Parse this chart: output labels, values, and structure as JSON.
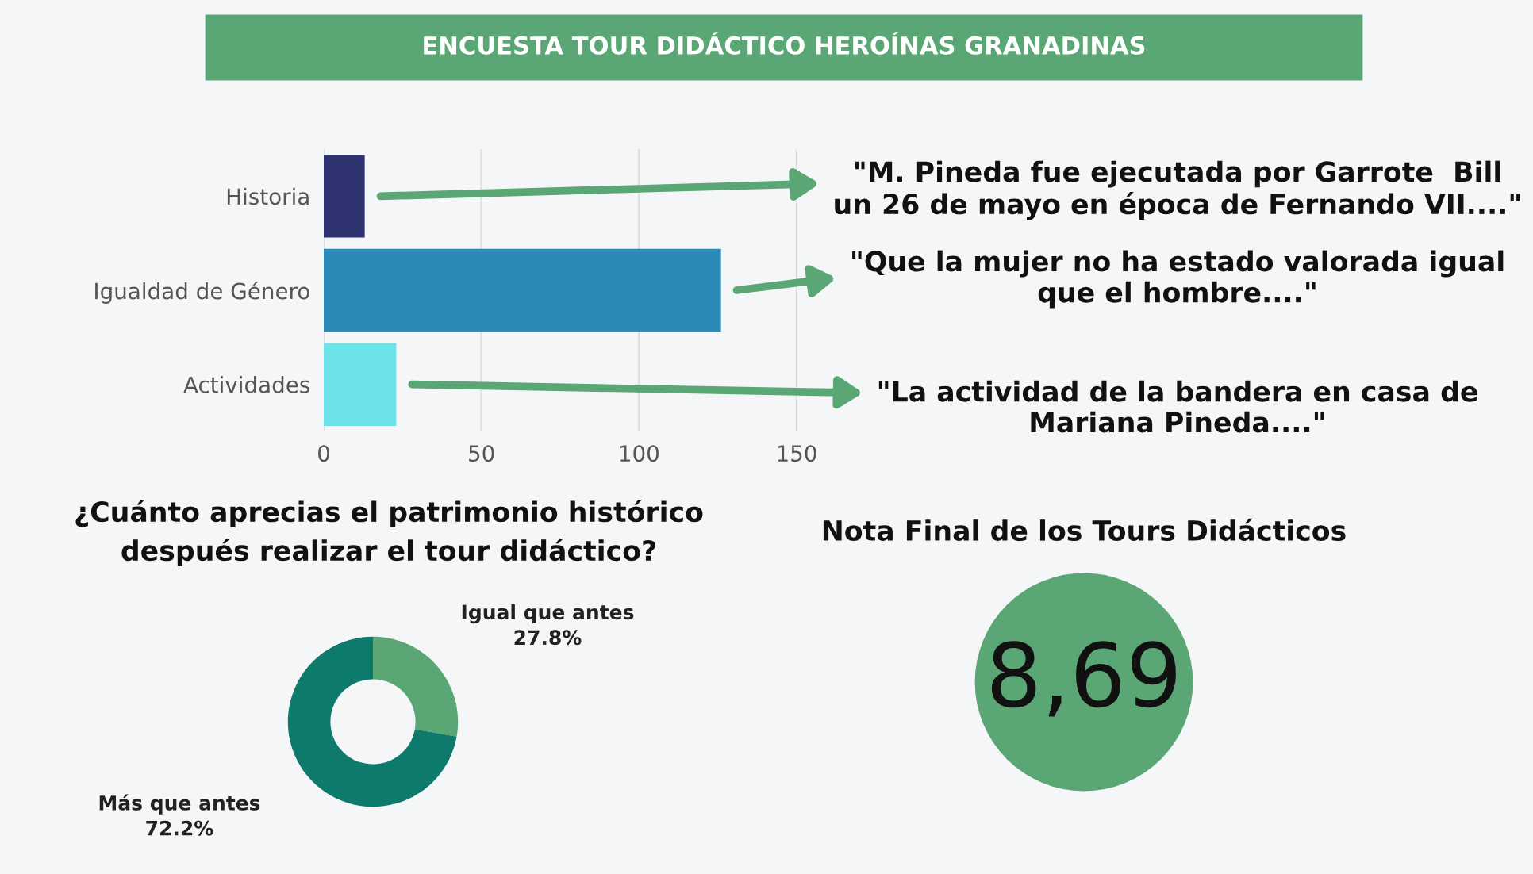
{
  "chart_data": [
    {
      "type": "bar",
      "orientation": "horizontal",
      "title": "ENCUESTA TOUR DIDÁCTICO HEROÍNAS GRANADINAS",
      "categories": [
        "Historia",
        "Igualdad de Género",
        "Actividades"
      ],
      "values": [
        13,
        126,
        23
      ],
      "colors": [
        "#2e3270",
        "#2b8ab8",
        "#6ce3e8"
      ],
      "xlim": [
        0,
        150
      ],
      "xticks": [
        0,
        50,
        100,
        150
      ],
      "grid": "x",
      "annotations": [
        "\"M. Pineda fue ejecutada por Garrote  Bill\nun 26 de mayo en época de Fernando VII....\"",
        "\"Que la mujer no ha estado valorada igual\nque el hombre....\"",
        "\"La actividad de la bandera en casa de\nMariana Pineda....\""
      ]
    },
    {
      "type": "donut",
      "title": "¿Cuánto aprecias el patrimonio histórico\ndespués realizar el tour didáctico?",
      "categories": [
        "Igual que antes",
        "Más que antes"
      ],
      "values": [
        27.8,
        72.2
      ],
      "colors": [
        "#5aa675",
        "#0e7a6c"
      ],
      "value_labels": [
        "27.8%",
        "72.2%"
      ]
    },
    {
      "type": "other",
      "title": "Nota Final de los Tours Didácticos",
      "annotations": [
        "8,69"
      ],
      "color": "#5aa675"
    }
  ]
}
